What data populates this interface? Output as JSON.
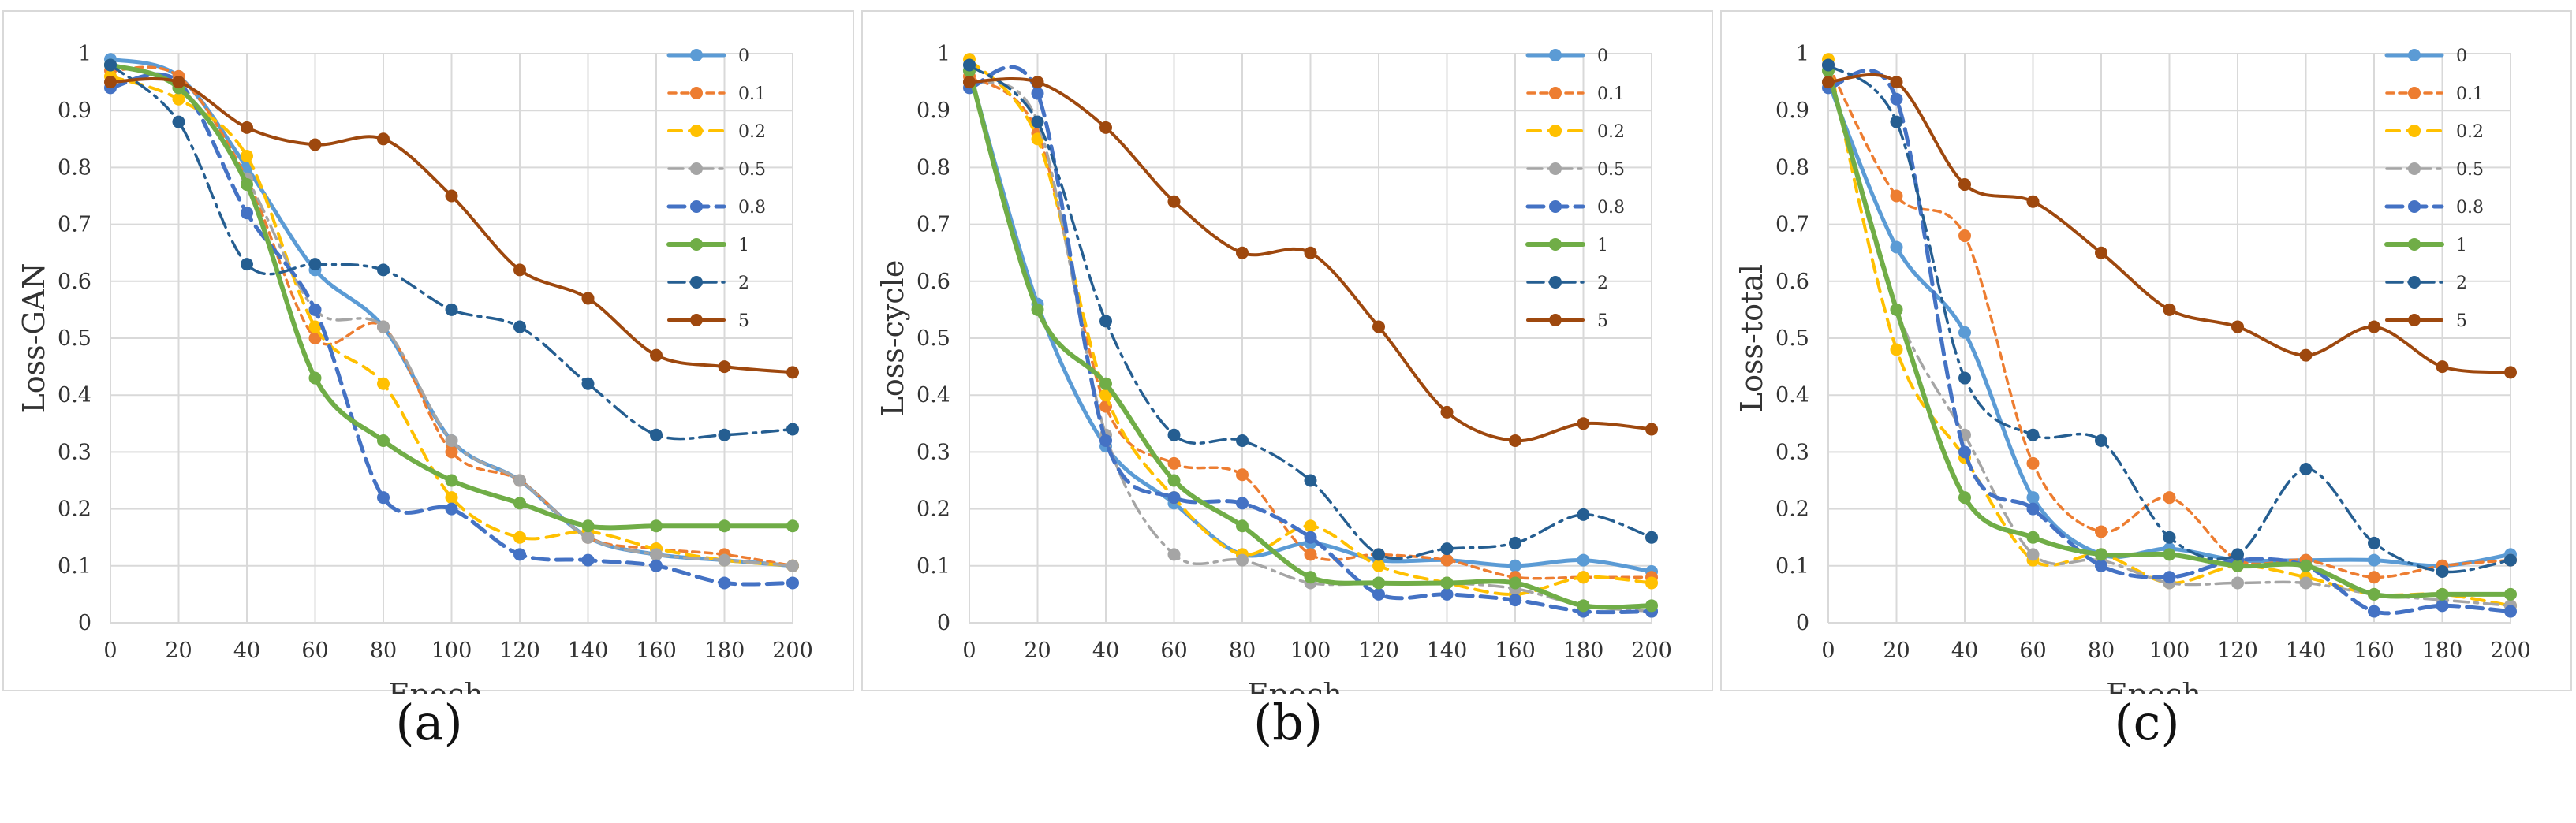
{
  "captions": [
    "(a)",
    "(b)",
    "(c)"
  ],
  "chart_data": [
    {
      "type": "line",
      "title": "",
      "xlabel": "Epoch",
      "ylabel": "Loss-GAN",
      "xlim": [
        0,
        200
      ],
      "ylim": [
        0,
        1
      ],
      "grid": true,
      "legend": "top-right",
      "x": [
        0,
        20,
        40,
        60,
        80,
        100,
        120,
        140,
        160,
        180,
        200
      ],
      "xticks": [
        "0",
        "20",
        "40",
        "60",
        "80",
        "100",
        "120",
        "140",
        "160",
        "180",
        "200"
      ],
      "yticks": [
        "0",
        "0.1",
        "0.2",
        "0.3",
        "0.4",
        "0.5",
        "0.6",
        "0.7",
        "0.8",
        "0.9",
        "1"
      ],
      "series": [
        {
          "name": "0",
          "color": "#5B9BD5",
          "dash": "",
          "width": 5,
          "values": [
            0.99,
            0.96,
            0.8,
            0.62,
            0.52,
            0.32,
            0.25,
            0.15,
            0.12,
            0.11,
            0.1
          ]
        },
        {
          "name": "0.1",
          "color": "#ED7D31",
          "dash": "9,7",
          "width": 3.5,
          "values": [
            0.97,
            0.96,
            0.78,
            0.5,
            0.52,
            0.3,
            0.25,
            0.15,
            0.13,
            0.12,
            0.1
          ]
        },
        {
          "name": "0.2",
          "color": "#FFC000",
          "dash": "16,10",
          "width": 4,
          "values": [
            0.96,
            0.92,
            0.82,
            0.52,
            0.42,
            0.22,
            0.15,
            0.16,
            0.13,
            0.11,
            0.1
          ]
        },
        {
          "name": "0.5",
          "color": "#A5A5A5",
          "dash": "18,8,4,8",
          "width": 3.5,
          "values": [
            0.98,
            0.94,
            0.78,
            0.55,
            0.52,
            0.32,
            0.25,
            0.15,
            0.12,
            0.11,
            0.1
          ]
        },
        {
          "name": "0.8",
          "color": "#4472C4",
          "dash": "20,10",
          "width": 5,
          "values": [
            0.94,
            0.95,
            0.72,
            0.55,
            0.22,
            0.2,
            0.12,
            0.11,
            0.1,
            0.07,
            0.07
          ]
        },
        {
          "name": "1",
          "color": "#70AD47",
          "dash": "",
          "width": 6,
          "values": [
            0.98,
            0.94,
            0.77,
            0.43,
            0.32,
            0.25,
            0.21,
            0.17,
            0.17,
            0.17,
            0.17
          ]
        },
        {
          "name": "2",
          "color": "#255E91",
          "dash": "20,8,4,8",
          "width": 3.5,
          "values": [
            0.98,
            0.88,
            0.63,
            0.63,
            0.62,
            0.55,
            0.52,
            0.42,
            0.33,
            0.33,
            0.34
          ]
        },
        {
          "name": "5",
          "color": "#9E480E",
          "dash": "",
          "width": 4,
          "values": [
            0.95,
            0.95,
            0.87,
            0.84,
            0.85,
            0.75,
            0.62,
            0.57,
            0.47,
            0.45,
            0.44
          ]
        }
      ]
    },
    {
      "type": "line",
      "title": "",
      "xlabel": "Epoch",
      "ylabel": "Loss-cycle",
      "xlim": [
        0,
        200
      ],
      "ylim": [
        0,
        1
      ],
      "grid": true,
      "legend": "top-right",
      "x": [
        0,
        20,
        40,
        60,
        80,
        100,
        120,
        140,
        160,
        180,
        200
      ],
      "xticks": [
        "0",
        "20",
        "40",
        "60",
        "80",
        "100",
        "120",
        "140",
        "160",
        "180",
        "200"
      ],
      "yticks": [
        "0",
        "0.1",
        "0.2",
        "0.3",
        "0.4",
        "0.5",
        "0.6",
        "0.7",
        "0.8",
        "0.9",
        "1"
      ],
      "series": [
        {
          "name": "0",
          "color": "#5B9BD5",
          "dash": "",
          "width": 5,
          "values": [
            0.97,
            0.56,
            0.31,
            0.21,
            0.12,
            0.14,
            0.11,
            0.11,
            0.1,
            0.11,
            0.09
          ]
        },
        {
          "name": "0.1",
          "color": "#ED7D31",
          "dash": "9,7",
          "width": 3.5,
          "values": [
            0.96,
            0.86,
            0.38,
            0.28,
            0.26,
            0.12,
            0.12,
            0.11,
            0.08,
            0.08,
            0.08
          ]
        },
        {
          "name": "0.2",
          "color": "#FFC000",
          "dash": "16,10",
          "width": 4,
          "values": [
            0.99,
            0.85,
            0.4,
            0.22,
            0.12,
            0.17,
            0.1,
            0.07,
            0.05,
            0.08,
            0.07
          ]
        },
        {
          "name": "0.5",
          "color": "#A5A5A5",
          "dash": "18,8,4,8",
          "width": 3.5,
          "values": [
            0.95,
            0.88,
            0.33,
            0.12,
            0.11,
            0.07,
            0.07,
            0.07,
            0.06,
            0.03,
            0.02
          ]
        },
        {
          "name": "0.8",
          "color": "#4472C4",
          "dash": "20,10",
          "width": 5,
          "values": [
            0.94,
            0.93,
            0.32,
            0.22,
            0.21,
            0.15,
            0.05,
            0.05,
            0.04,
            0.02,
            0.02
          ]
        },
        {
          "name": "1",
          "color": "#70AD47",
          "dash": "",
          "width": 6,
          "values": [
            0.97,
            0.55,
            0.42,
            0.25,
            0.17,
            0.08,
            0.07,
            0.07,
            0.07,
            0.03,
            0.03
          ]
        },
        {
          "name": "2",
          "color": "#255E91",
          "dash": "20,8,4,8",
          "width": 3.5,
          "values": [
            0.98,
            0.88,
            0.53,
            0.33,
            0.32,
            0.25,
            0.12,
            0.13,
            0.14,
            0.19,
            0.15
          ]
        },
        {
          "name": "5",
          "color": "#9E480E",
          "dash": "",
          "width": 4,
          "values": [
            0.95,
            0.95,
            0.87,
            0.74,
            0.65,
            0.65,
            0.52,
            0.37,
            0.32,
            0.35,
            0.34
          ]
        }
      ]
    },
    {
      "type": "line",
      "title": "",
      "xlabel": "Epoch",
      "ylabel": "Loss-total",
      "xlim": [
        0,
        200
      ],
      "ylim": [
        0,
        1
      ],
      "grid": true,
      "legend": "top-right",
      "x": [
        0,
        20,
        40,
        60,
        80,
        100,
        120,
        140,
        160,
        180,
        200
      ],
      "xticks": [
        "0",
        "20",
        "40",
        "60",
        "80",
        "100",
        "120",
        "140",
        "160",
        "180",
        "200"
      ],
      "yticks": [
        "0",
        "0.1",
        "0.2",
        "0.3",
        "0.4",
        "0.5",
        "0.6",
        "0.7",
        "0.8",
        "0.9",
        "1"
      ],
      "series": [
        {
          "name": "0",
          "color": "#5B9BD5",
          "dash": "",
          "width": 5,
          "values": [
            0.95,
            0.66,
            0.51,
            0.22,
            0.12,
            0.13,
            0.11,
            0.11,
            0.11,
            0.1,
            0.12
          ]
        },
        {
          "name": "0.1",
          "color": "#ED7D31",
          "dash": "9,7",
          "width": 3.5,
          "values": [
            0.98,
            0.75,
            0.68,
            0.28,
            0.16,
            0.22,
            0.11,
            0.11,
            0.08,
            0.1,
            0.11
          ]
        },
        {
          "name": "0.2",
          "color": "#FFC000",
          "dash": "16,10",
          "width": 4,
          "values": [
            0.99,
            0.48,
            0.29,
            0.11,
            0.12,
            0.07,
            0.1,
            0.08,
            0.05,
            0.05,
            0.03
          ]
        },
        {
          "name": "0.5",
          "color": "#A5A5A5",
          "dash": "18,8,4,8",
          "width": 3.5,
          "values": [
            0.97,
            0.55,
            0.33,
            0.12,
            0.11,
            0.07,
            0.07,
            0.07,
            0.05,
            0.04,
            0.03
          ]
        },
        {
          "name": "0.8",
          "color": "#4472C4",
          "dash": "20,10",
          "width": 5,
          "values": [
            0.94,
            0.92,
            0.3,
            0.2,
            0.1,
            0.08,
            0.11,
            0.1,
            0.02,
            0.03,
            0.02
          ]
        },
        {
          "name": "1",
          "color": "#70AD47",
          "dash": "",
          "width": 6,
          "values": [
            0.97,
            0.55,
            0.22,
            0.15,
            0.12,
            0.12,
            0.1,
            0.1,
            0.05,
            0.05,
            0.05
          ]
        },
        {
          "name": "2",
          "color": "#255E91",
          "dash": "20,8,4,8",
          "width": 3.5,
          "values": [
            0.98,
            0.88,
            0.43,
            0.33,
            0.32,
            0.15,
            0.12,
            0.27,
            0.14,
            0.09,
            0.11
          ]
        },
        {
          "name": "5",
          "color": "#9E480E",
          "dash": "",
          "width": 4,
          "values": [
            0.95,
            0.95,
            0.77,
            0.74,
            0.65,
            0.55,
            0.52,
            0.47,
            0.52,
            0.45,
            0.44
          ]
        }
      ]
    }
  ]
}
